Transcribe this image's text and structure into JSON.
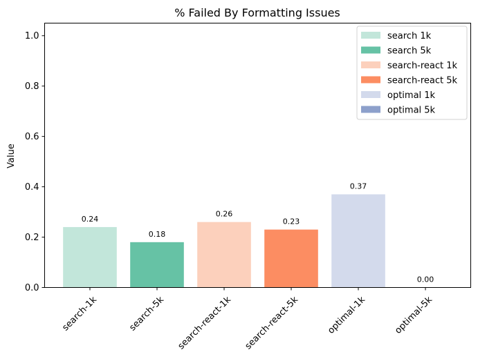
{
  "chart_data": {
    "type": "bar",
    "title": "% Failed By Formatting Issues",
    "xlabel": "",
    "ylabel": "Value",
    "ylim": [
      0,
      1.05
    ],
    "yticks": [
      0.0,
      0.2,
      0.4,
      0.6,
      0.8,
      1.0
    ],
    "ytick_labels": [
      "0.0",
      "0.2",
      "0.4",
      "0.6",
      "0.8",
      "1.0"
    ],
    "categories": [
      "search-1k",
      "search-5k",
      "search-react-1k",
      "search-react-5k",
      "optimal-1k",
      "optimal-5k"
    ],
    "values": [
      0.24,
      0.18,
      0.26,
      0.23,
      0.37,
      0.0
    ],
    "value_labels": [
      "0.24",
      "0.18",
      "0.26",
      "0.23",
      "0.37",
      "0.00"
    ],
    "colors": [
      "#c2e6da",
      "#66c2a5",
      "#fcd0bc",
      "#fc8d62",
      "#d3daec",
      "#8da0cb"
    ],
    "legend": {
      "placement": "top-right",
      "entries": [
        "search 1k",
        "search 5k",
        "search-react 1k",
        "search-react 5k",
        "optimal 1k",
        "optimal 5k"
      ]
    },
    "grid": false,
    "xtick_rotation": 45
  }
}
